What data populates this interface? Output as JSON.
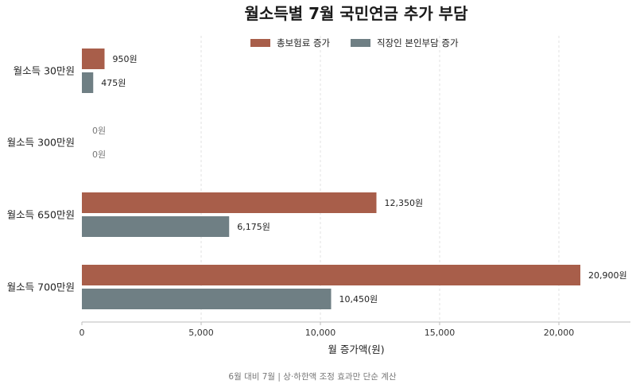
{
  "chart_data": {
    "type": "bar",
    "orientation": "horizontal",
    "title": "월소득별 7월 국민연금 추가 부담",
    "categories": [
      "월소득 30만원",
      "월소득 300만원",
      "월소득 650만원",
      "월소득 700만원"
    ],
    "series": [
      {
        "name": "총보험료 증가",
        "color": "#a85e4a",
        "values": [
          950,
          0,
          12350,
          20900
        ],
        "labels": [
          "950원",
          "0원",
          "12,350원",
          "20,900원"
        ]
      },
      {
        "name": "직장인 본인부담 증가",
        "color": "#6f7f84",
        "values": [
          475,
          0,
          6175,
          10450
        ],
        "labels": [
          "475원",
          "0원",
          "6,175원",
          "10,450원"
        ]
      }
    ],
    "xlabel": "월 증가액(원)",
    "xlim": [
      0,
      23000
    ],
    "xticks": [
      0,
      5000,
      10000,
      15000,
      20000
    ],
    "xtick_labels": [
      "0",
      "5,000",
      "10,000",
      "15,000",
      "20,000"
    ],
    "grid": "vertical-dashed",
    "legend_position": "top-center",
    "footnote": "6월 대비 7월 | 상·하한액 조정 효과만 단순 계산"
  }
}
